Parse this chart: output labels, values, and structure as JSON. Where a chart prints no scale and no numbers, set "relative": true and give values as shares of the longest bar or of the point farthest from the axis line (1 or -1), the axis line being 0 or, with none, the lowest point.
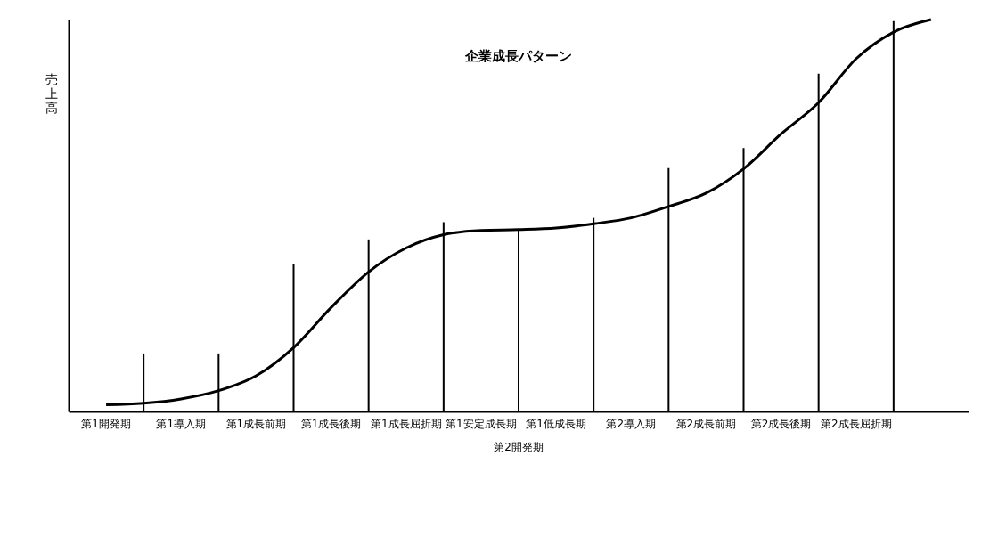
{
  "chart_data": {
    "type": "line",
    "title": "企業成長パターン",
    "ylabel": "売上高",
    "relative": true,
    "categories": [
      "第1開発期",
      null,
      "第1導入期",
      null,
      "第1成長前期",
      null,
      "第1成長後期",
      null,
      "第1成長屈折期",
      null,
      "第1安定成長期",
      null,
      "第1低成長期",
      null,
      "第2導入期",
      null,
      "第2成長前期",
      null,
      "第2成長後期",
      null,
      "第2成長屈折期",
      null,
      null
    ],
    "tick_labels": "x",
    "marker": "none",
    "line_style": "solid",
    "annotations": [
      "第2開発期"
    ],
    "series": [
      {
        "color": "#000000",
        "values": [
          0.017,
          0.021,
          0.032,
          0.053,
          0.091,
          0.163,
          0.265,
          0.356,
          0.417,
          0.451,
          0.462,
          0.464,
          0.468,
          0.479,
          0.494,
          0.523,
          0.557,
          0.619,
          0.708,
          0.788,
          0.9,
          0.968,
          1.0
        ]
      },
      {
        "type": "bar",
        "color": "#000000",
        "values": [
          null,
          0.148,
          null,
          0.148,
          null,
          0.375,
          null,
          0.439,
          null,
          0.483,
          null,
          0.466,
          null,
          0.494,
          null,
          0.621,
          null,
          0.672,
          null,
          0.862,
          null,
          0.996,
          null
        ]
      }
    ]
  }
}
